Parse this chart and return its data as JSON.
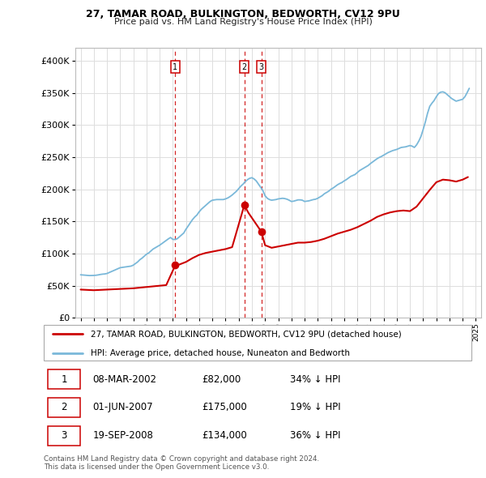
{
  "title": "27, TAMAR ROAD, BULKINGTON, BEDWORTH, CV12 9PU",
  "subtitle": "Price paid vs. HM Land Registry's House Price Index (HPI)",
  "legend_line1": "27, TAMAR ROAD, BULKINGTON, BEDWORTH, CV12 9PU (detached house)",
  "legend_line2": "HPI: Average price, detached house, Nuneaton and Bedworth",
  "footer1": "Contains HM Land Registry data © Crown copyright and database right 2024.",
  "footer2": "This data is licensed under the Open Government Licence v3.0.",
  "transactions": [
    {
      "label": "1",
      "date": "08-MAR-2002",
      "price": 82000,
      "pct": "34%",
      "dir": "↓",
      "x_year": 2002.19
    },
    {
      "label": "2",
      "date": "01-JUN-2007",
      "price": 175000,
      "pct": "19%",
      "dir": "↓",
      "x_year": 2007.42
    },
    {
      "label": "3",
      "date": "19-SEP-2008",
      "price": 134000,
      "pct": "36%",
      "dir": "↓",
      "x_year": 2008.72
    }
  ],
  "hpi_color": "#7ab8d9",
  "price_color": "#cc0000",
  "vline_color": "#cc0000",
  "dot_color": "#cc0000",
  "background_color": "#ffffff",
  "grid_color": "#dddddd",
  "ylim": [
    0,
    420000
  ],
  "yticks": [
    0,
    50000,
    100000,
    150000,
    200000,
    250000,
    300000,
    350000,
    400000
  ],
  "xlim_start": 1994.6,
  "xlim_end": 2025.4,
  "hpi_data": {
    "years": [
      1995.0,
      1995.17,
      1995.33,
      1995.5,
      1995.67,
      1995.83,
      1996.0,
      1996.17,
      1996.33,
      1996.5,
      1996.67,
      1996.83,
      1997.0,
      1997.17,
      1997.33,
      1997.5,
      1997.67,
      1997.83,
      1998.0,
      1998.17,
      1998.33,
      1998.5,
      1998.67,
      1998.83,
      1999.0,
      1999.17,
      1999.33,
      1999.5,
      1999.67,
      1999.83,
      2000.0,
      2000.17,
      2000.33,
      2000.5,
      2000.67,
      2000.83,
      2001.0,
      2001.17,
      2001.33,
      2001.5,
      2001.67,
      2001.83,
      2002.0,
      2002.17,
      2002.33,
      2002.5,
      2002.67,
      2002.83,
      2003.0,
      2003.17,
      2003.33,
      2003.5,
      2003.67,
      2003.83,
      2004.0,
      2004.17,
      2004.33,
      2004.5,
      2004.67,
      2004.83,
      2005.0,
      2005.17,
      2005.33,
      2005.5,
      2005.67,
      2005.83,
      2006.0,
      2006.17,
      2006.33,
      2006.5,
      2006.67,
      2006.83,
      2007.0,
      2007.17,
      2007.33,
      2007.5,
      2007.67,
      2007.83,
      2008.0,
      2008.17,
      2008.33,
      2008.5,
      2008.67,
      2008.83,
      2009.0,
      2009.17,
      2009.33,
      2009.5,
      2009.67,
      2009.83,
      2010.0,
      2010.17,
      2010.33,
      2010.5,
      2010.67,
      2010.83,
      2011.0,
      2011.17,
      2011.33,
      2011.5,
      2011.67,
      2011.83,
      2012.0,
      2012.17,
      2012.33,
      2012.5,
      2012.67,
      2012.83,
      2013.0,
      2013.17,
      2013.33,
      2013.5,
      2013.67,
      2013.83,
      2014.0,
      2014.17,
      2014.33,
      2014.5,
      2014.67,
      2014.83,
      2015.0,
      2015.17,
      2015.33,
      2015.5,
      2015.67,
      2015.83,
      2016.0,
      2016.17,
      2016.33,
      2016.5,
      2016.67,
      2016.83,
      2017.0,
      2017.17,
      2017.33,
      2017.5,
      2017.67,
      2017.83,
      2018.0,
      2018.17,
      2018.33,
      2018.5,
      2018.67,
      2018.83,
      2019.0,
      2019.17,
      2019.33,
      2019.5,
      2019.67,
      2019.83,
      2020.0,
      2020.17,
      2020.33,
      2020.5,
      2020.67,
      2020.83,
      2021.0,
      2021.17,
      2021.33,
      2021.5,
      2021.67,
      2021.83,
      2022.0,
      2022.17,
      2022.33,
      2022.5,
      2022.67,
      2022.83,
      2023.0,
      2023.17,
      2023.33,
      2023.5,
      2023.67,
      2023.83,
      2024.0,
      2024.17,
      2024.33,
      2024.5
    ],
    "values": [
      67000,
      66700,
      66400,
      66000,
      65800,
      65900,
      66000,
      66300,
      66800,
      67500,
      68000,
      68300,
      69000,
      70500,
      72000,
      73500,
      75000,
      76500,
      78000,
      78500,
      79000,
      79500,
      80000,
      80500,
      82000,
      84500,
      87000,
      90500,
      93000,
      96000,
      99000,
      101000,
      104000,
      107000,
      109000,
      111000,
      113000,
      115500,
      118000,
      120500,
      123000,
      125000,
      122000,
      122000,
      123000,
      126000,
      129000,
      132000,
      138000,
      143000,
      148000,
      153000,
      157000,
      160000,
      165000,
      169000,
      172000,
      175000,
      178000,
      181000,
      183000,
      183500,
      184000,
      184000,
      184000,
      184000,
      185000,
      186500,
      188500,
      191000,
      194000,
      197000,
      201000,
      205000,
      208000,
      212000,
      215000,
      217000,
      218000,
      216000,
      213000,
      208000,
      203000,
      198000,
      190000,
      186000,
      184000,
      183000,
      183500,
      184000,
      185000,
      185500,
      186000,
      185500,
      184500,
      183000,
      181000,
      181500,
      182500,
      183500,
      183500,
      183000,
      181000,
      181500,
      182000,
      183000,
      184000,
      184500,
      186000,
      188000,
      190000,
      193000,
      195000,
      197000,
      200000,
      202000,
      204500,
      207000,
      209000,
      210500,
      213000,
      215000,
      217500,
      220000,
      221500,
      223000,
      226000,
      229000,
      231000,
      233000,
      235000,
      237000,
      240000,
      242500,
      245000,
      247500,
      249500,
      251000,
      253000,
      255000,
      257000,
      258500,
      260000,
      261000,
      262000,
      263500,
      265000,
      265500,
      266000,
      267000,
      268000,
      267000,
      265000,
      269000,
      275000,
      282000,
      293000,
      305000,
      318000,
      329000,
      334000,
      338000,
      344000,
      349000,
      351000,
      351500,
      350000,
      347000,
      344000,
      341000,
      339000,
      337000,
      338000,
      339000,
      340000,
      344000,
      350000,
      357000
    ]
  },
  "price_data": {
    "years": [
      1995.0,
      1995.5,
      1996.0,
      1996.5,
      1997.0,
      1997.5,
      1998.0,
      1998.5,
      1999.0,
      1999.5,
      2000.0,
      2000.5,
      2001.0,
      2001.5,
      2002.19,
      2002.5,
      2003.0,
      2003.5,
      2004.0,
      2004.5,
      2005.0,
      2005.5,
      2006.0,
      2006.5,
      2007.42,
      2007.75,
      2008.72,
      2009.0,
      2009.5,
      2010.0,
      2010.5,
      2011.0,
      2011.5,
      2012.0,
      2012.5,
      2013.0,
      2013.5,
      2014.0,
      2014.5,
      2015.0,
      2015.5,
      2016.0,
      2016.5,
      2017.0,
      2017.5,
      2018.0,
      2018.5,
      2019.0,
      2019.5,
      2020.0,
      2020.5,
      2021.0,
      2021.5,
      2022.0,
      2022.5,
      2023.0,
      2023.5,
      2024.0,
      2024.4
    ],
    "values": [
      44000,
      43500,
      43000,
      43500,
      44000,
      44500,
      45000,
      45500,
      46000,
      47000,
      48000,
      49000,
      50000,
      51000,
      82000,
      83000,
      87000,
      93000,
      98000,
      101000,
      103000,
      105000,
      107000,
      110000,
      175000,
      163000,
      134000,
      113000,
      109000,
      111000,
      113000,
      115000,
      117000,
      117000,
      118000,
      120000,
      123000,
      127000,
      131000,
      134000,
      137000,
      141000,
      146000,
      151000,
      157000,
      161000,
      164000,
      166000,
      167000,
      166000,
      173000,
      186000,
      199000,
      211000,
      215000,
      214000,
      212000,
      215000,
      219000
    ]
  }
}
